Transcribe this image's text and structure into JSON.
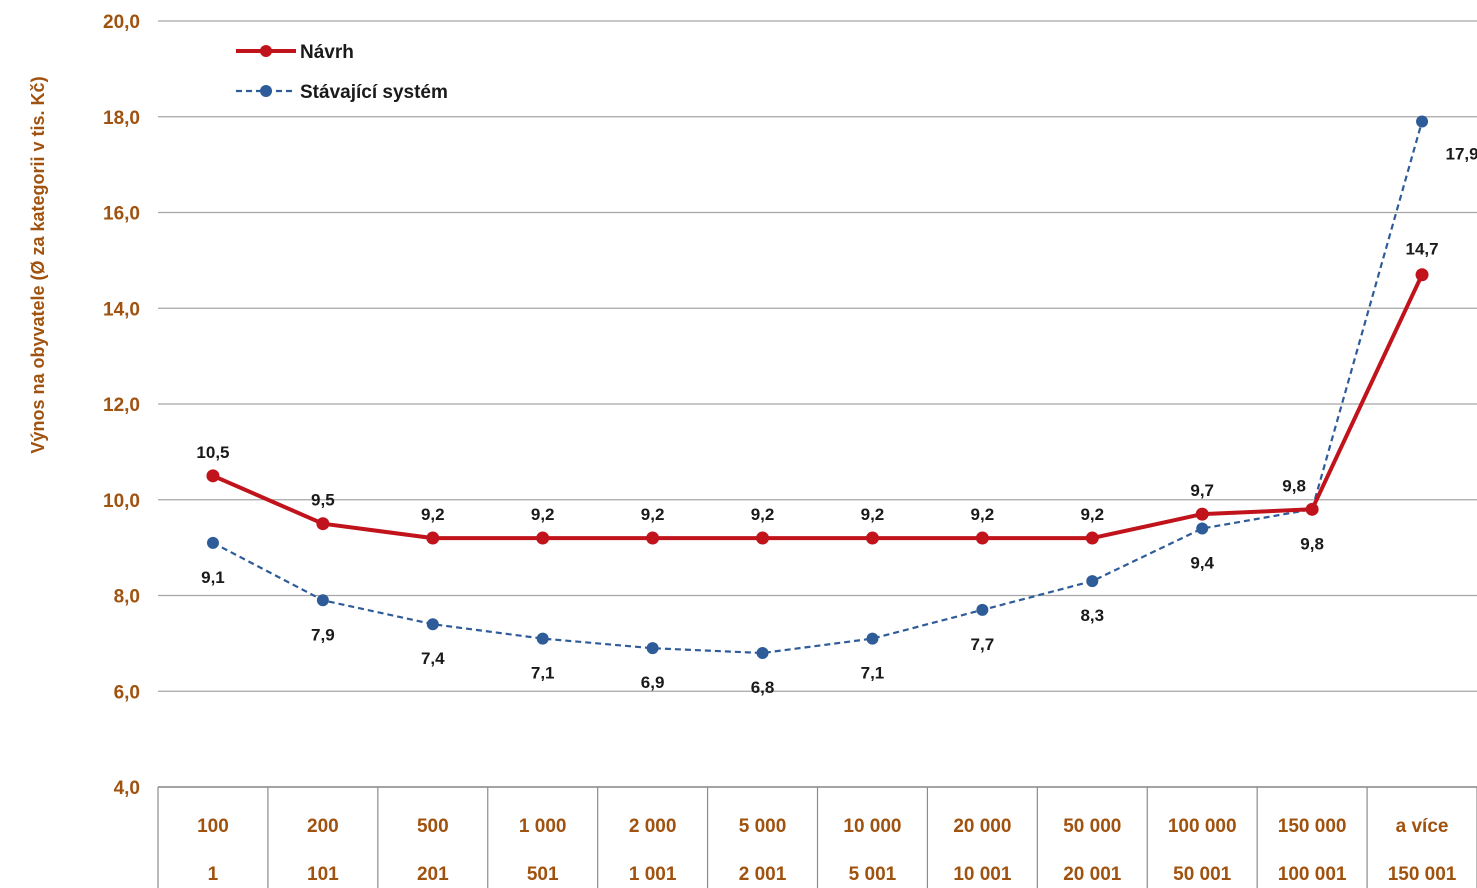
{
  "chart_data": {
    "type": "line",
    "ylabel": "Výnos na obyvatele (Ø za kategorii v tis. Kč)",
    "ylim": [
      4,
      20
    ],
    "yticks": [
      "4,0",
      "6,0",
      "8,0",
      "10,0",
      "12,0",
      "14,0",
      "16,0",
      "18,0",
      "20,0"
    ],
    "ytick_values": [
      4,
      6,
      8,
      10,
      12,
      14,
      16,
      18,
      20
    ],
    "categories_upper": [
      "100",
      "200",
      "500",
      "1 000",
      "2 000",
      "5 000",
      "10 000",
      "20 000",
      "50 000",
      "100 000",
      "150 000",
      "a více"
    ],
    "categories_lower": [
      "1",
      "101",
      "201",
      "501",
      "1 001",
      "2 001",
      "5 001",
      "10 001",
      "20 001",
      "50 001",
      "100 001",
      "150 001"
    ],
    "grid": true,
    "legend_position": "top-left",
    "series": [
      {
        "name": "Návrh",
        "color": "#c0131b",
        "style": "solid",
        "values": [
          10.5,
          9.5,
          9.2,
          9.2,
          9.2,
          9.2,
          9.2,
          9.2,
          9.2,
          9.7,
          9.8,
          14.7
        ],
        "labels": [
          "10,5",
          "9,5",
          "9,2",
          "9,2",
          "9,2",
          "9,2",
          "9,2",
          "9,2",
          "9,2",
          "9,7",
          "9,8",
          "14,7"
        ]
      },
      {
        "name": "Stávající systém",
        "color": "#2e5c99",
        "style": "dashed",
        "values": [
          9.1,
          7.9,
          7.4,
          7.1,
          6.9,
          6.8,
          7.1,
          7.7,
          8.3,
          9.4,
          9.8,
          17.9
        ],
        "labels": [
          "9,1",
          "7,9",
          "7,4",
          "7,1",
          "6,9",
          "6,8",
          "7,1",
          "7,7",
          "8,3",
          "9,4",
          "9,8",
          "17,9"
        ]
      }
    ]
  }
}
